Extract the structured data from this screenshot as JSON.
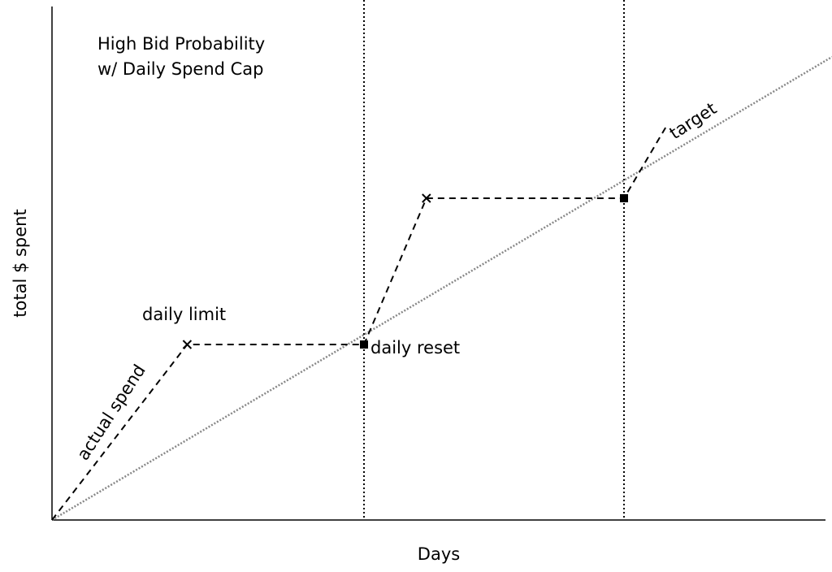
{
  "title": [
    "High Bid Probability",
    "w/ Daily Spend Cap"
  ],
  "axes": {
    "xlabel": "Days",
    "ylabel": "total $ spent"
  },
  "annotations": {
    "daily_limit": "daily limit",
    "daily_reset": "daily reset",
    "actual_spend": "actual spend",
    "target": "target"
  },
  "chart_data": {
    "type": "line",
    "title": "High Bid Probability w/ Daily Spend Cap",
    "xlabel": "Days",
    "ylabel": "total $ spent",
    "xlim": [
      0,
      3
    ],
    "ylim": [
      0,
      2
    ],
    "grid": false,
    "day_boundaries": [
      1.2,
      2.2
    ],
    "series": [
      {
        "name": "target",
        "style": "dotted-gray",
        "x": [
          0,
          3
        ],
        "y": [
          0,
          1.9
        ]
      },
      {
        "name": "actual spend",
        "style": "dashed-black",
        "x": [
          0,
          0.52,
          1.2,
          1.44,
          2.2,
          2.36
        ],
        "y": [
          0,
          0.72,
          0.72,
          1.32,
          1.32,
          1.61
        ]
      }
    ],
    "markers": [
      {
        "type": "x",
        "label": "daily limit",
        "x": 0.52,
        "y": 0.72
      },
      {
        "type": "square",
        "label": "daily reset",
        "x": 1.2,
        "y": 0.72
      },
      {
        "type": "x",
        "x": 1.44,
        "y": 1.32
      },
      {
        "type": "square",
        "x": 2.2,
        "y": 1.32
      }
    ]
  }
}
